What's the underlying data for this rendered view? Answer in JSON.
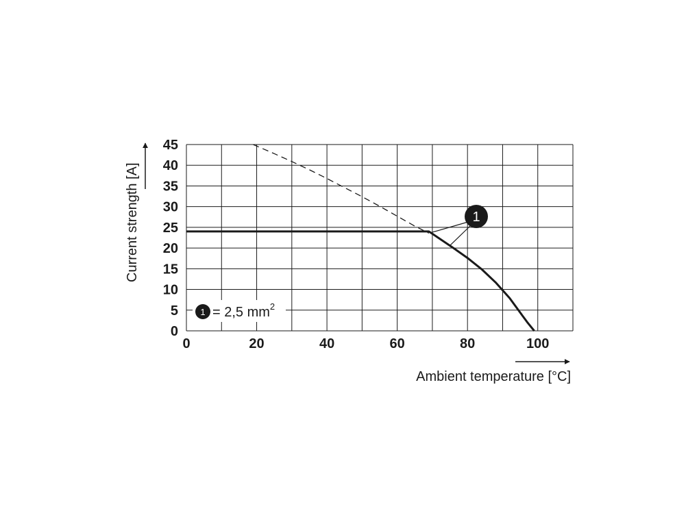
{
  "chart_data": {
    "type": "line",
    "xlabel": "Ambient temperature [°C]",
    "ylabel": "Current strength [A]",
    "xlim": [
      0,
      110
    ],
    "ylim": [
      0,
      45
    ],
    "x_ticks": [
      0,
      20,
      40,
      60,
      80,
      100
    ],
    "y_ticks": [
      0,
      5,
      10,
      15,
      20,
      25,
      30,
      35,
      40,
      45
    ],
    "grid": true,
    "series": [
      {
        "style": "solid",
        "x": [
          0,
          69,
          72,
          76,
          80,
          84,
          88,
          92,
          95,
          97,
          99
        ],
        "y": [
          24,
          24,
          22.3,
          20,
          17.6,
          14.9,
          11.7,
          7.9,
          4.4,
          2.1,
          0
        ]
      },
      {
        "style": "dashed",
        "x": [
          19,
          25,
          30,
          35,
          40,
          45,
          50,
          55,
          60,
          65,
          69
        ],
        "y": [
          45,
          42.8,
          40.9,
          38.9,
          36.8,
          34.6,
          32.4,
          30.1,
          27.7,
          25.3,
          23.6
        ]
      }
    ],
    "annotations": [
      {
        "label": "1",
        "points_to": [
          [
            69,
            23.6
          ],
          [
            75,
            20.6
          ]
        ]
      }
    ],
    "legend": {
      "marker": "1",
      "text": "= 2,5 mm",
      "superscript": "2"
    }
  }
}
